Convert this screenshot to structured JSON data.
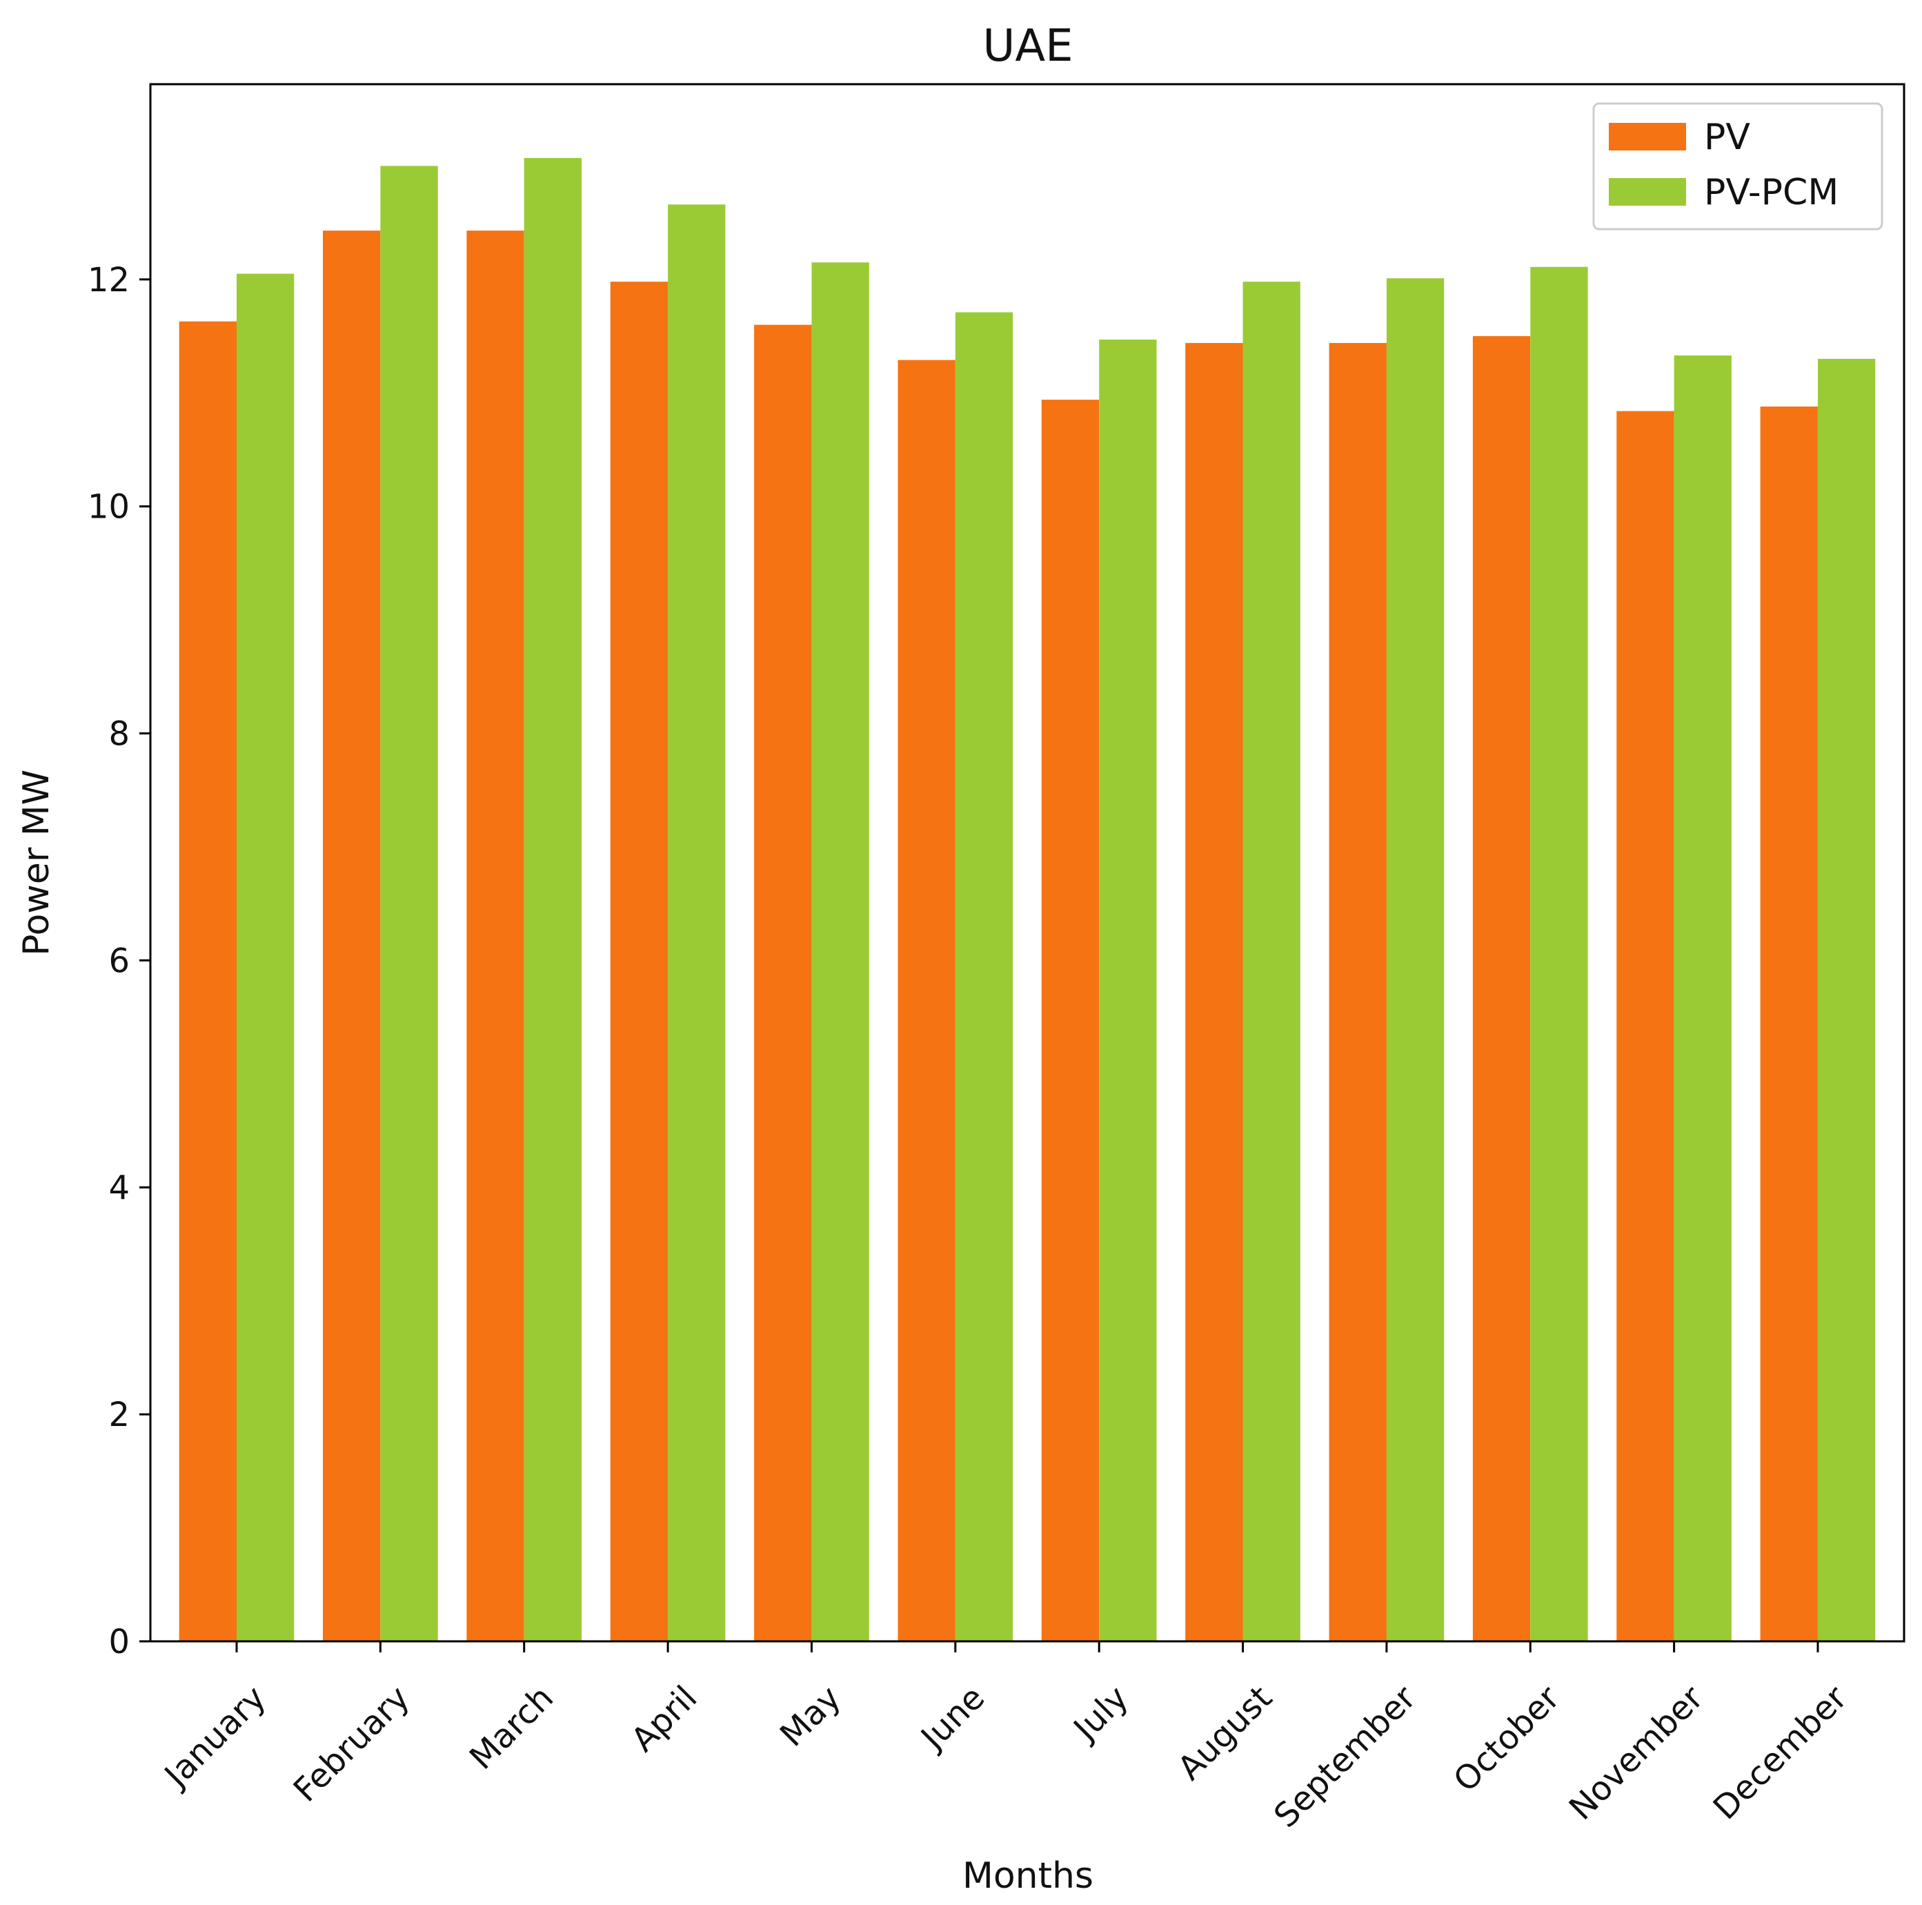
{
  "chart_data": {
    "type": "bar",
    "title": "UAE",
    "xlabel": "Months",
    "ylabel": "Power MW",
    "categories": [
      "January",
      "February",
      "March",
      "April",
      "May",
      "June",
      "July",
      "August",
      "September",
      "October",
      "November",
      "December"
    ],
    "series": [
      {
        "name": "PV",
        "color": "#f57313",
        "values": [
          11.63,
          12.43,
          12.43,
          11.98,
          11.6,
          11.29,
          10.94,
          11.44,
          11.44,
          11.5,
          10.84,
          10.88
        ]
      },
      {
        "name": "PV-PCM",
        "color": "#9acb34",
        "values": [
          12.05,
          13.0,
          13.07,
          12.66,
          12.15,
          11.71,
          11.47,
          11.98,
          12.01,
          12.11,
          11.33,
          11.3
        ]
      }
    ],
    "yticks": [
      0,
      2,
      4,
      6,
      8,
      10,
      12
    ],
    "ylim": [
      0,
      13.72
    ],
    "legend_position": "top-right",
    "grid": false
  }
}
